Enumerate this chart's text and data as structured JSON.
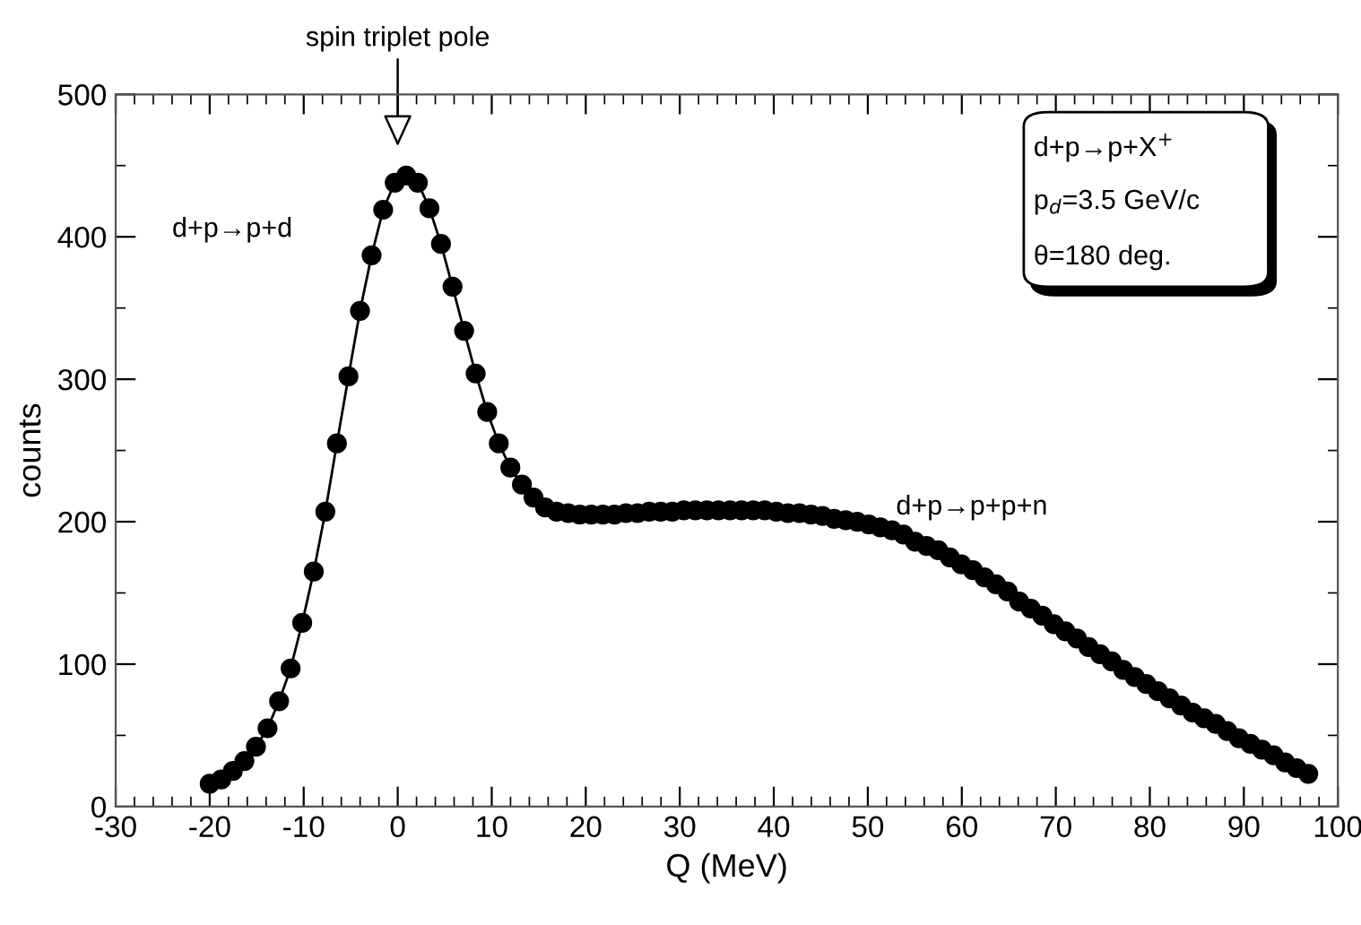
{
  "chart_data": {
    "type": "line",
    "xlabel": "Q (MeV)",
    "ylabel": "counts",
    "x": [
      -20.0,
      -18.77,
      -17.54,
      -16.31,
      -15.08,
      -13.85,
      -12.62,
      -11.39,
      -10.16,
      -8.93,
      -7.7,
      -6.47,
      -5.24,
      -4.01,
      -2.78,
      -1.55,
      -0.32,
      0.91,
      2.14,
      3.37,
      4.6,
      5.83,
      7.06,
      8.29,
      9.52,
      10.75,
      11.98,
      13.21,
      14.44,
      15.67,
      16.9,
      18.13,
      19.36,
      20.59,
      21.82,
      23.05,
      24.28,
      25.51,
      26.74,
      27.97,
      29.2,
      30.43,
      31.66,
      32.89,
      34.12,
      35.35,
      36.58,
      37.81,
      39.04,
      40.27,
      41.5,
      42.73,
      43.96,
      45.19,
      46.42,
      47.65,
      48.88,
      50.11,
      51.34,
      52.57,
      53.8,
      55.03,
      56.26,
      57.49,
      58.72,
      59.95,
      61.18,
      62.41,
      63.64,
      64.87,
      66.1,
      67.33,
      68.56,
      69.79,
      71.02,
      72.25,
      73.48,
      74.71,
      75.94,
      77.17,
      78.4,
      79.63,
      80.86,
      82.09,
      83.32,
      84.55,
      85.78,
      87.01,
      88.24,
      89.47,
      90.7,
      91.93,
      93.16,
      94.39,
      95.62,
      96.85
    ],
    "series": [
      {
        "color": "#000000",
        "values": [
          16,
          19,
          25,
          32,
          42,
          55,
          74,
          97,
          129,
          165,
          207,
          255,
          302,
          348,
          387,
          419,
          438,
          443,
          438,
          420,
          395,
          365,
          334,
          304,
          277,
          255,
          238,
          226,
          217,
          210,
          207,
          206,
          205,
          205,
          205,
          205,
          206,
          206,
          207,
          207,
          207,
          208,
          208,
          208,
          208,
          208,
          208,
          208,
          208,
          207,
          206,
          206,
          205,
          204,
          202,
          201,
          200,
          198,
          196,
          194,
          191,
          186,
          183,
          180,
          175,
          170,
          166,
          161,
          156,
          151,
          144,
          139,
          134,
          128,
          123,
          118,
          112,
          107,
          102,
          96,
          91,
          86,
          81,
          76,
          71,
          66,
          62,
          58,
          53,
          48,
          44,
          40,
          36,
          31,
          27,
          23
        ]
      }
    ],
    "marker": "circle",
    "line_style": "solid",
    "xlim": [
      -30,
      100
    ],
    "xticks": [
      -30,
      -20,
      -10,
      0,
      10,
      20,
      30,
      40,
      50,
      60,
      70,
      80,
      90,
      100
    ],
    "ylim": [
      0,
      500
    ],
    "yticks": [
      0,
      100,
      200,
      300,
      400,
      500
    ],
    "annotations": [
      "spin triplet pole",
      "d+p→p+d",
      "d+p→p+p+n",
      "d+p→p+X$^{+}$",
      "p$_{d}$=3.5 GeV/c",
      "θ=180 deg."
    ]
  }
}
